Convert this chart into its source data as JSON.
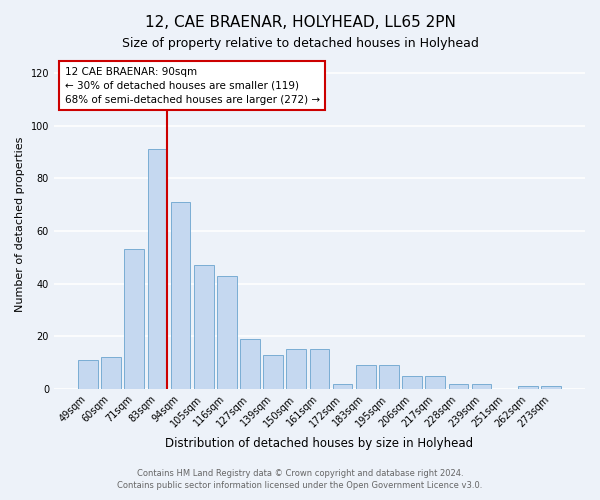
{
  "title": "12, CAE BRAENAR, HOLYHEAD, LL65 2PN",
  "subtitle": "Size of property relative to detached houses in Holyhead",
  "xlabel": "Distribution of detached houses by size in Holyhead",
  "ylabel": "Number of detached properties",
  "bar_labels": [
    "49sqm",
    "60sqm",
    "71sqm",
    "83sqm",
    "94sqm",
    "105sqm",
    "116sqm",
    "127sqm",
    "139sqm",
    "150sqm",
    "161sqm",
    "172sqm",
    "183sqm",
    "195sqm",
    "206sqm",
    "217sqm",
    "228sqm",
    "239sqm",
    "251sqm",
    "262sqm",
    "273sqm"
  ],
  "bar_heights": [
    11,
    12,
    53,
    91,
    71,
    47,
    43,
    19,
    13,
    15,
    15,
    2,
    9,
    9,
    5,
    5,
    2,
    2,
    0,
    1,
    1
  ],
  "bar_color": "#c5d8f0",
  "bar_edgecolor": "#7aadd4",
  "vline_x_index": 3,
  "vline_color": "#cc0000",
  "annotation_text_line1": "12 CAE BRAENAR: 90sqm",
  "annotation_text_line2": "← 30% of detached houses are smaller (119)",
  "annotation_text_line3": "68% of semi-detached houses are larger (272) →",
  "annotation_box_facecolor": "#ffffff",
  "annotation_box_edgecolor": "#cc0000",
  "ylim": [
    0,
    125
  ],
  "yticks": [
    0,
    20,
    40,
    60,
    80,
    100,
    120
  ],
  "footer_line1": "Contains HM Land Registry data © Crown copyright and database right 2024.",
  "footer_line2": "Contains public sector information licensed under the Open Government Licence v3.0.",
  "background_color": "#edf2f9",
  "plot_background_color": "#edf2f9",
  "title_fontsize": 11,
  "subtitle_fontsize": 9,
  "ylabel_fontsize": 8,
  "xlabel_fontsize": 8.5,
  "tick_fontsize": 7,
  "annotation_fontsize": 7.5,
  "footer_fontsize": 6
}
